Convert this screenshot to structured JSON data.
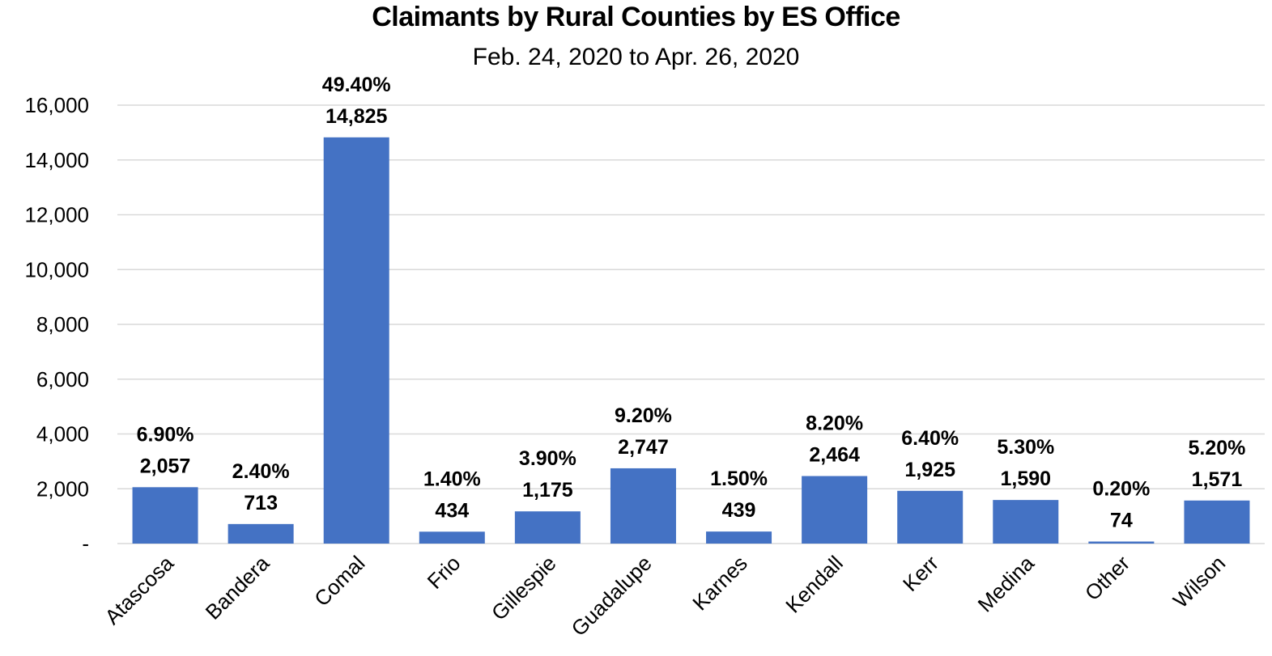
{
  "chart_data": {
    "type": "bar",
    "title": "Claimants by Rural Counties by ES Office",
    "subtitle": "Feb. 24, 2020 to Apr. 26, 2020",
    "xlabel": "",
    "ylabel": "",
    "ylim": [
      0,
      16000
    ],
    "yticks": [
      "-",
      "2,000",
      "4,000",
      "6,000",
      "8,000",
      "10,000",
      "12,000",
      "14,000",
      "16,000"
    ],
    "ytick_values": [
      0,
      2000,
      4000,
      6000,
      8000,
      10000,
      12000,
      14000,
      16000
    ],
    "grid": true,
    "bar_color": "#4472C4",
    "categories": [
      "Atascosa",
      "Bandera",
      "Comal",
      "Frio",
      "Gillespie",
      "Guadalupe",
      "Karnes",
      "Kendall",
      "Kerr",
      "Medina",
      "Other",
      "Wilson"
    ],
    "values": [
      2057,
      713,
      14825,
      434,
      1175,
      2747,
      439,
      2464,
      1925,
      1590,
      74,
      1571
    ],
    "value_labels": [
      "2,057",
      "713",
      "14,825",
      "434",
      "1,175",
      "2,747",
      "439",
      "2,464",
      "1,925",
      "1,590",
      "74",
      "1,571"
    ],
    "percent_labels": [
      "6.90%",
      "2.40%",
      "49.40%",
      "1.40%",
      "3.90%",
      "9.20%",
      "1.50%",
      "8.20%",
      "6.40%",
      "5.30%",
      "0.20%",
      "5.20%"
    ]
  }
}
